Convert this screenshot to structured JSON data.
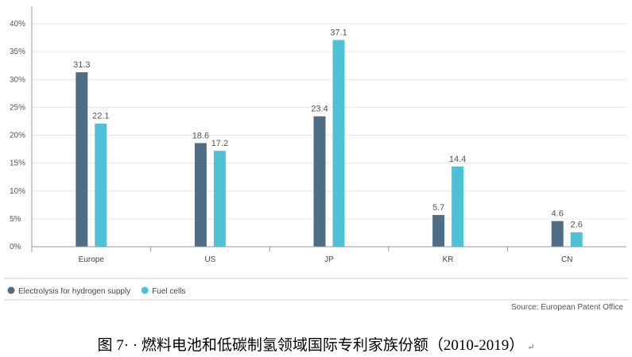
{
  "chart_data": {
    "type": "bar",
    "categories": [
      "Europe",
      "US",
      "JP",
      "KR",
      "CN"
    ],
    "series": [
      {
        "name": "Electrolysis for hydrogen supply",
        "values": [
          31.3,
          18.6,
          23.4,
          5.7,
          4.6
        ]
      },
      {
        "name": "Fuel cells",
        "values": [
          22.1,
          17.2,
          37.1,
          14.4,
          2.6
        ]
      }
    ],
    "data_labels": [
      [
        "31.3",
        "18.6",
        "23.4",
        "5.7",
        "4.6"
      ],
      [
        "22.1",
        "17.2",
        "37.1",
        "14.4",
        "2.6"
      ]
    ],
    "y_ticks": [
      0,
      5,
      10,
      15,
      20,
      25,
      30,
      35,
      40
    ],
    "y_tick_labels": [
      "0%",
      "5%",
      "10%",
      "15%",
      "20%",
      "25%",
      "30%",
      "35%",
      "40%"
    ],
    "ylim": [
      0,
      40
    ],
    "grid": true,
    "legend_position": "bottom-left",
    "colors": [
      "#4f6e85",
      "#4fc1d6"
    ],
    "source": "Source: European Patent Office"
  },
  "caption": {
    "text": "图 7· · 燃料电池和低碳制氢领域国际专利家族份额（2010-2019）",
    "mark": "↵"
  }
}
